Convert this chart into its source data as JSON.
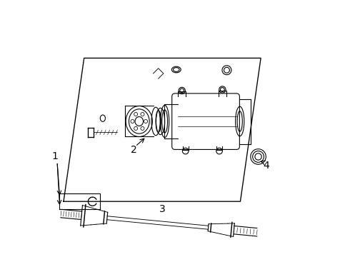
{
  "bg_color": "#ffffff",
  "line_color": "#000000",
  "label_color": "#000000",
  "labels": [
    "1",
    "2",
    "3",
    "4"
  ]
}
